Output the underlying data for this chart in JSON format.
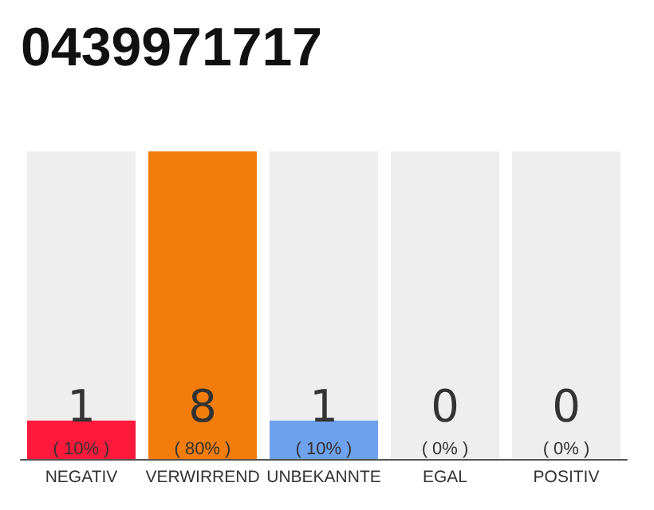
{
  "chart_data": {
    "type": "bar",
    "title": "0439971717",
    "categories": [
      "NEGATIV",
      "VERWIRREND",
      "UNBEKANNTE",
      "EGAL",
      "POSITIV"
    ],
    "stacked": true,
    "series": [
      {
        "colors": [
          "#ff1a3c",
          "#f27d0c",
          "#6ea2ee",
          "#eeeeee",
          "#eeeeee"
        ],
        "values": [
          1,
          8,
          1,
          0,
          0
        ],
        "value_labels": [
          "1\n( 10% )",
          "8\n( 80% )",
          "1\n( 10% )",
          "0\n( 0% )",
          "0\n( 0% )"
        ]
      },
      {
        "color": "#eeeeee",
        "values": [
          7,
          0,
          7,
          8,
          8
        ]
      }
    ],
    "ylim": [
      0,
      8
    ],
    "tick_labels": "x",
    "grid": false
  }
}
